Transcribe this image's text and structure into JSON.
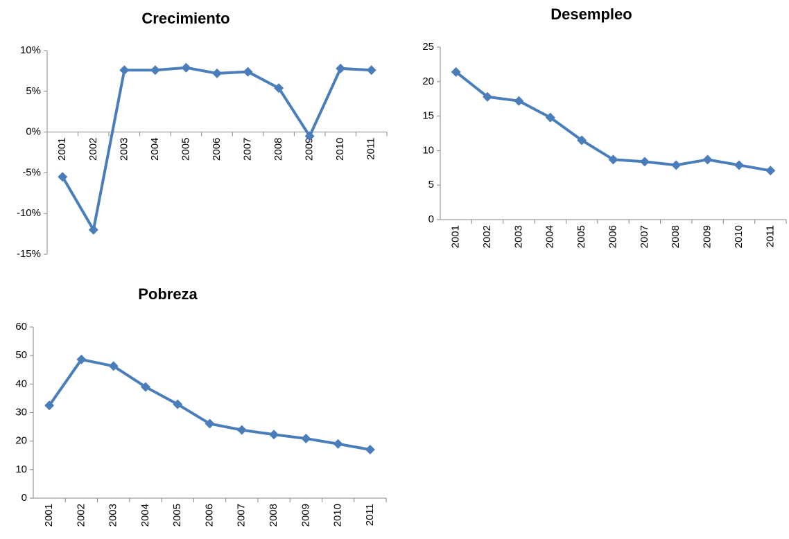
{
  "chart_data": [
    {
      "type": "line",
      "title": "Crecimiento",
      "categories": [
        "2001",
        "2002",
        "2003",
        "2004",
        "2005",
        "2006",
        "2007",
        "2008",
        "2009",
        "2010",
        "2011"
      ],
      "values": [
        -5.5,
        -12,
        7.6,
        7.6,
        7.9,
        7.2,
        7.4,
        5.4,
        -0.5,
        7.8,
        7.6
      ],
      "color": "#4a7ebb",
      "ylim": [
        -15,
        10
      ],
      "yticks": [
        {
          "value": -15,
          "label": "-15%"
        },
        {
          "value": -10,
          "label": "-10%"
        },
        {
          "value": -5,
          "label": "-5%"
        },
        {
          "value": 0,
          "label": "0%"
        },
        {
          "value": 5,
          "label": "5%"
        },
        {
          "value": 10,
          "label": "10%"
        }
      ]
    },
    {
      "type": "line",
      "title": "Desempleo",
      "categories": [
        "2001",
        "2002",
        "2003",
        "2004",
        "2005",
        "2006",
        "2007",
        "2008",
        "2009",
        "2010",
        "2011"
      ],
      "values": [
        21.4,
        17.8,
        17.2,
        14.8,
        11.5,
        8.7,
        8.4,
        7.9,
        8.7,
        7.9,
        7.1
      ],
      "color": "#4a7ebb",
      "ylim": [
        0,
        25
      ],
      "yticks": [
        0,
        5,
        10,
        15,
        20,
        25
      ]
    },
    {
      "type": "line",
      "title": "Pobreza",
      "categories": [
        "2001",
        "2002",
        "2003",
        "2004",
        "2005",
        "2006",
        "2007",
        "2008",
        "2009",
        "2010",
        "2011"
      ],
      "values": [
        32.5,
        48.6,
        46.3,
        39,
        32.9,
        26.1,
        23.9,
        22.3,
        20.9,
        19,
        17
      ],
      "color": "#4a7ebb",
      "ylim": [
        0,
        60
      ],
      "yticks": [
        0,
        10,
        20,
        30,
        40,
        50,
        60
      ]
    }
  ]
}
